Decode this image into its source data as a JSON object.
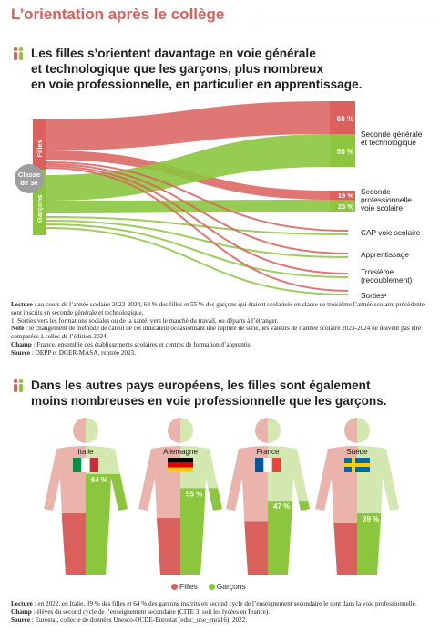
{
  "page": {
    "title": "L’orientation après le collège"
  },
  "section1": {
    "heading_lines": [
      "Les filles s’orientent davantage en voie générale",
      "et technologique que les garçons, plus nombreux",
      "en voie professionnelle, en particulier en apprentissage."
    ],
    "notes": {
      "lecture_label": "Lecture",
      "lecture": " : au cours de l’année scolaire 2023-2024, 68 % des filles et 55 % des garçons qui étaient scolarisés en classe de troisième l’année scolaire précédente sont inscrits en seconde générale et technologique.",
      "note1": "1. Sorties vers les formations sociales ou de la santé, vers le marché du travail, ou départs à l’étranger.",
      "note_label": "Note",
      "note": " : le changement de méthode de calcul de cet indicateur occasionnant une rupture de série, les valeurs de l’année scolaire 2023-2024 ne doivent pas être comparées à celles de l’édition 2024.",
      "champ_label": "Champ",
      "champ": " : France, ensemble des établissements scolaires et centres de formation d’apprentis.",
      "source_label": "Source",
      "source": " : DEPP et DGER-MASA, rentrée 2023."
    }
  },
  "section2": {
    "heading_lines": [
      "Dans les autres pays européens, les filles sont également",
      "moins nombreuses en voie professionnelle que les garçons."
    ],
    "legend": {
      "filles": "Filles",
      "garcons": "Garçons"
    },
    "notes": {
      "lecture_label": "Lecture",
      "lecture": " : en 2022, en Italie, 39 % des filles et 64 % des garçons inscrits en second cycle de l’enseignement secondaire le sont dans la voie professionnelle.",
      "champ_label": "Champ",
      "champ": " : élèves du second cycle de l’enseignement secondaire (CITE 3, soit les lycées en France).",
      "source_label": "Source",
      "source": " : Eurostat, collecte de données Unesco-OCDE-Eurostat (educ_uoe_enra16), 2022."
    }
  },
  "colors": {
    "filles": "#d9605c",
    "filles_light": "#eab4ad",
    "garcons": "#8cc63f",
    "garcons_light": "#d3e8b0",
    "title": "#d9605c"
  },
  "chart_data": [
    {
      "type": "sankey",
      "source_node": "Classe de 3e",
      "groups": [
        "Filles",
        "Garçons"
      ],
      "destinations": [
        "Seconde générale et technologique",
        "Seconde professionnelle voie scolaire",
        "CAP voie scolaire",
        "Apprentissage",
        "Troisième (redoublement)",
        "Sorties¹"
      ],
      "destination_labels": [
        [
          "Seconde générale",
          "et technologique"
        ],
        [
          "Seconde",
          "professionnelle",
          "voie scolaire"
        ],
        [
          "CAP voie scolaire"
        ],
        [
          "Apprentissage"
        ],
        [
          "Troisième",
          "(redoublement)"
        ],
        [
          "Sorties¹"
        ]
      ],
      "source_label_lines": [
        "Classe",
        "de 3e"
      ],
      "series": [
        {
          "name": "Filles",
          "values": [
            68,
            19,
            null,
            null,
            null,
            null
          ],
          "value_labels": [
            "68 %",
            "19 %",
            "",
            "",
            "",
            ""
          ]
        },
        {
          "name": "Garçons",
          "values": [
            55,
            23,
            null,
            null,
            null,
            null
          ],
          "value_labels": [
            "55 %",
            "23 %",
            "",
            "",
            "",
            ""
          ]
        }
      ]
    },
    {
      "type": "bar",
      "categories": [
        "Italie",
        "Allemagne",
        "France",
        "Suède"
      ],
      "flags": [
        "italy-flag-icon",
        "germany-flag-icon",
        "france-flag-icon",
        "sweden-flag-icon"
      ],
      "series": [
        {
          "name": "Filles",
          "values": [
            39,
            36,
            34,
            33
          ],
          "value_labels": [
            "39 %",
            "36 %",
            "34 %",
            "33 %"
          ]
        },
        {
          "name": "Garçons",
          "values": [
            64,
            55,
            47,
            39
          ],
          "value_labels": [
            "64 %",
            "55 %",
            "47 %",
            "39 %"
          ]
        }
      ],
      "ylim": [
        0,
        100
      ]
    }
  ]
}
